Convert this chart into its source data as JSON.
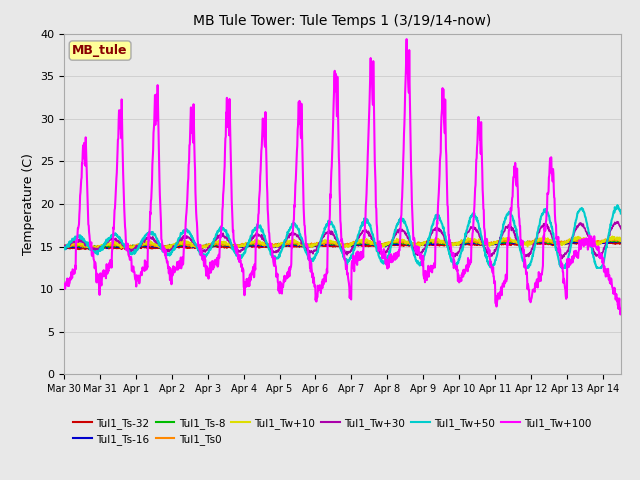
{
  "title": "MB Tule Tower: Tule Temps 1 (3/19/14-now)",
  "ylabel": "Temperature (C)",
  "ylim": [
    0,
    40
  ],
  "yticks": [
    0,
    5,
    10,
    15,
    20,
    25,
    30,
    35,
    40
  ],
  "bg_color": "#e8e8e8",
  "plot_bg_color": "#e8e8e8",
  "series": {
    "Tul1_Ts-32": {
      "color": "#cc0000",
      "lw": 1.2
    },
    "Tul1_Ts-16": {
      "color": "#0000cc",
      "lw": 1.2
    },
    "Tul1_Ts-8": {
      "color": "#00bb00",
      "lw": 1.2
    },
    "Tul1_Ts0": {
      "color": "#ff8800",
      "lw": 1.2
    },
    "Tul1_Tw+10": {
      "color": "#dddd00",
      "lw": 1.2
    },
    "Tul1_Tw+30": {
      "color": "#aa00aa",
      "lw": 1.2
    },
    "Tul1_Tw+50": {
      "color": "#00cccc",
      "lw": 1.5
    },
    "Tul1_Tw+100": {
      "color": "#ff00ff",
      "lw": 1.5
    }
  },
  "x_tick_labels": [
    "Mar 30",
    "Mar 31",
    "Apr 1",
    "Apr 2",
    "Apr 3",
    "Apr 4",
    "Apr 5",
    "Apr 6",
    "Apr 7",
    "Apr 8",
    "Apr 9",
    "Apr 10",
    "Apr 11",
    "Apr 12",
    "Apr 13",
    "Apr 14"
  ],
  "x_tick_positions": [
    0,
    1,
    2,
    3,
    4,
    5,
    6,
    7,
    8,
    9,
    10,
    11,
    12,
    13,
    14,
    15
  ],
  "annotation_box": {
    "text": "MB_tule",
    "color": "#880000",
    "bg": "#ffff99",
    "border": "#aaaaaa"
  },
  "legend_rows": [
    [
      "Tul1_Ts-32",
      "Tul1_Ts-16",
      "Tul1_Ts-8",
      "Tul1_Ts0",
      "Tul1_Tw+10",
      "Tul1_Tw+30"
    ],
    [
      "Tul1_Tw+50",
      "Tul1_Tw+100"
    ]
  ]
}
